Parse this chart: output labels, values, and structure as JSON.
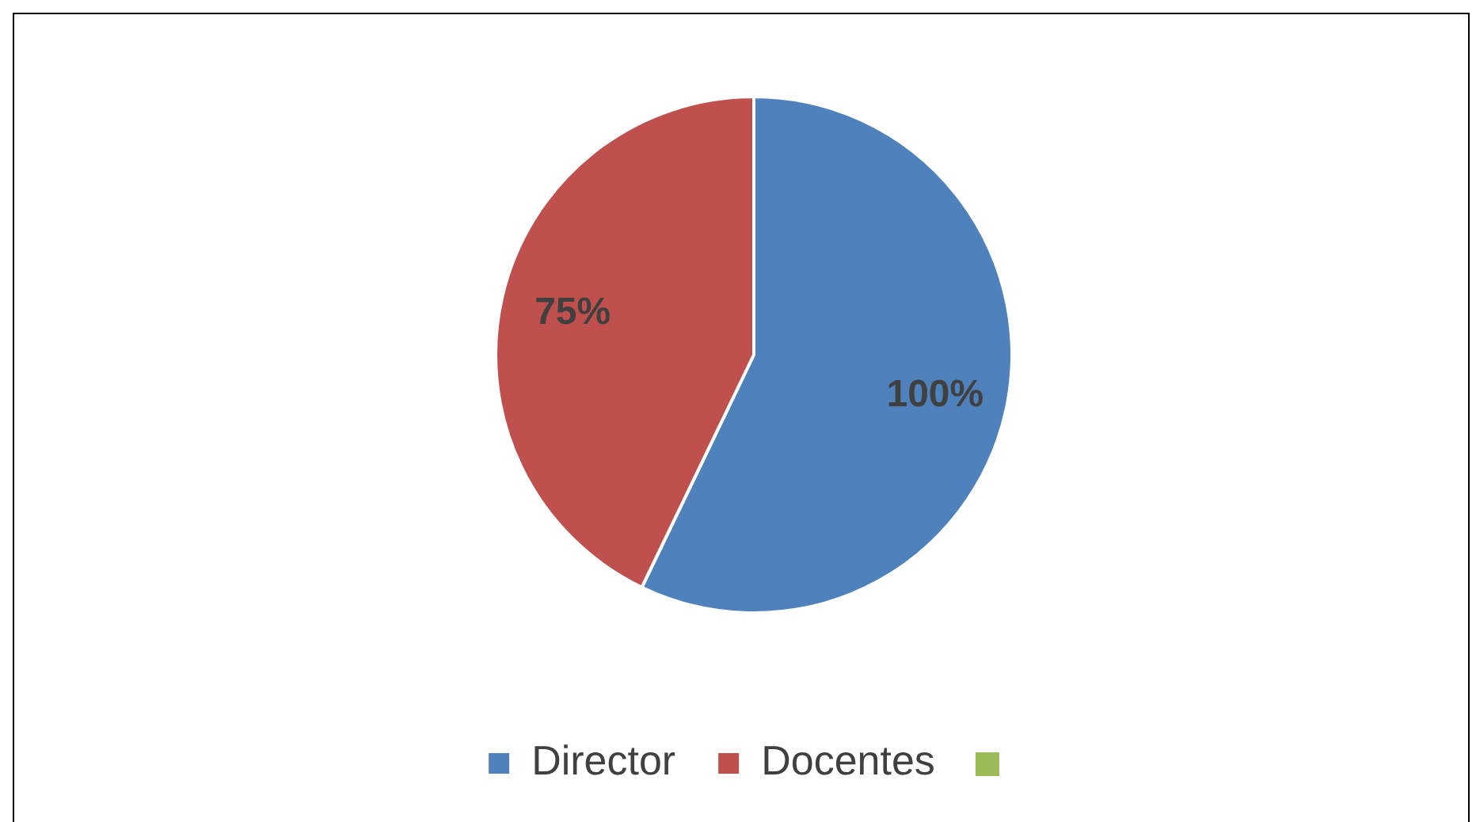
{
  "chart_data": {
    "type": "pie",
    "categories": [
      "Director",
      "Docentes",
      null
    ],
    "values": [
      100,
      75,
      0
    ],
    "colors": [
      "#4f81bd",
      "#c0504d",
      "#9bbb59"
    ],
    "value_labels": [
      "100%",
      "75%",
      null
    ],
    "legend": "bottom"
  }
}
